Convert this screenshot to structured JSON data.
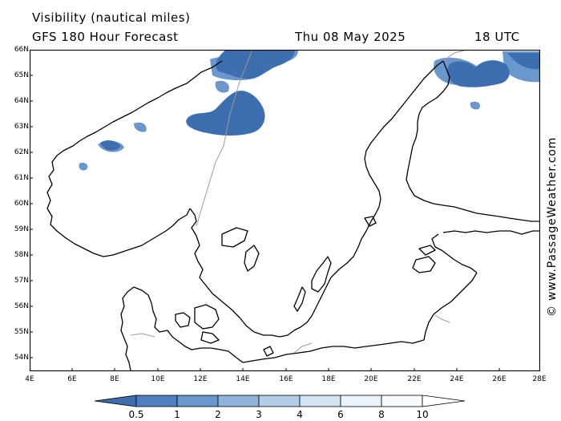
{
  "header": {
    "title": "Visibility (nautical miles)",
    "subtitle": "GFS 180 Hour Forecast",
    "date": "Thu 08 May 2025",
    "time": "18 UTC"
  },
  "watermark": "© www.PassageWeather.com",
  "map": {
    "lat_labels": [
      "66N",
      "65N",
      "64N",
      "63N",
      "62N",
      "61N",
      "60N",
      "59N",
      "58N",
      "57N",
      "56N",
      "55N",
      "54N"
    ],
    "lon_labels": [
      "4E",
      "6E",
      "8E",
      "10E",
      "12E",
      "14E",
      "16E",
      "18E",
      "20E",
      "22E",
      "24E",
      "26E",
      "28E"
    ],
    "colors": {
      "land_line": "#000000",
      "border": "#9a9a9a",
      "fog_dark": "#3d6eb0",
      "fog_light": "#6b98cc"
    }
  },
  "legend": {
    "labels": [
      "0.5",
      "1",
      "2",
      "3",
      "4",
      "6",
      "8",
      "10"
    ],
    "colors": [
      "#3d6eb0",
      "#4f7fc0",
      "#6b98cc",
      "#8fb3da",
      "#b3cde8",
      "#d4e3f3",
      "#eaf2fa",
      "#ffffff"
    ]
  }
}
